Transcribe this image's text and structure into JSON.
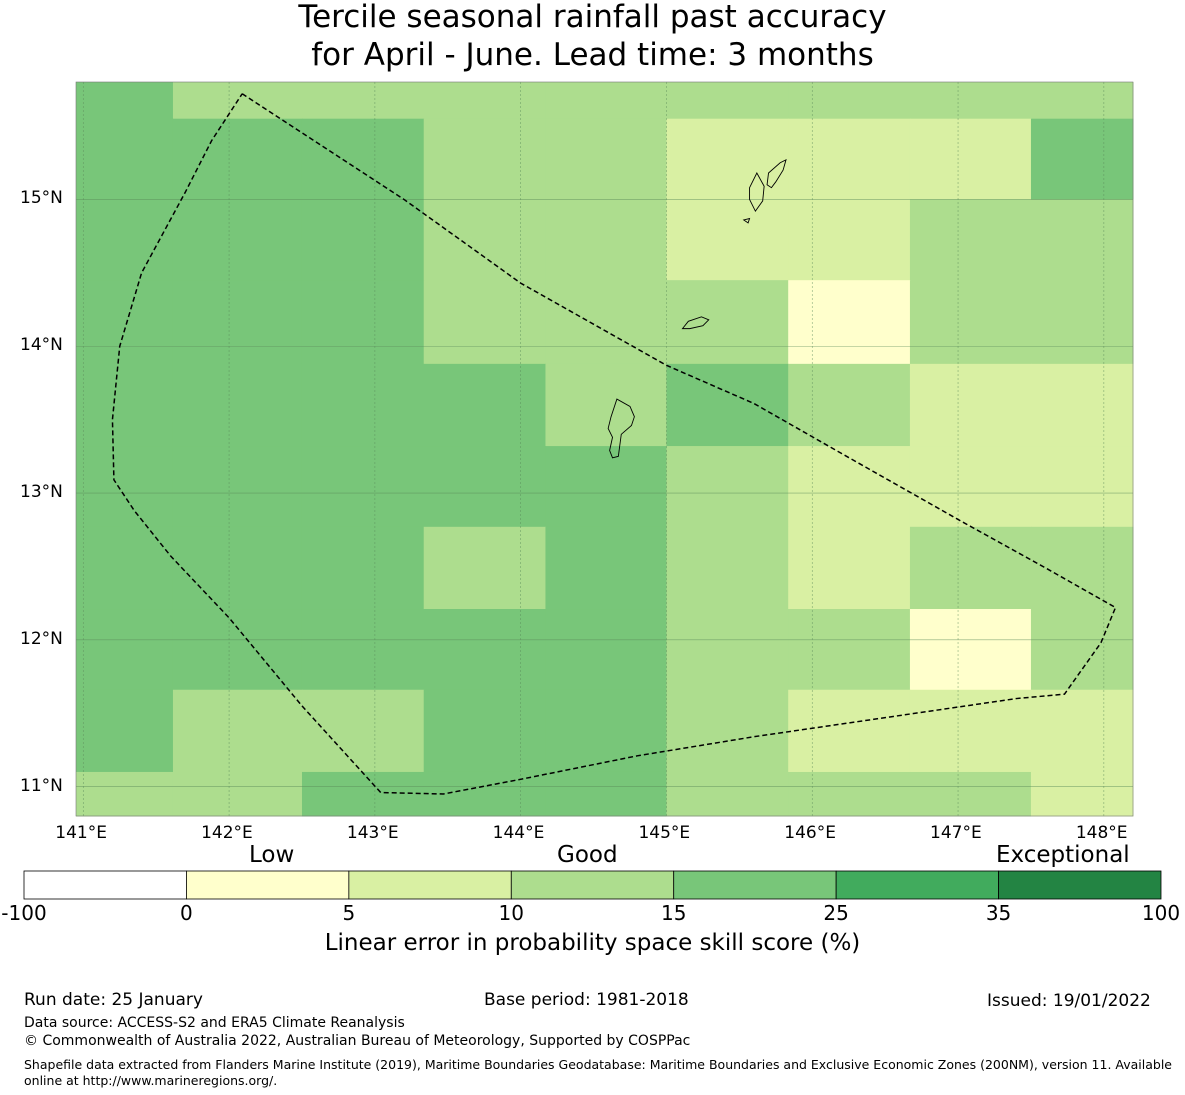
{
  "title": {
    "line1": "Tercile seasonal rainfall past accuracy",
    "line2": "for April - June. Lead time: 3 months"
  },
  "map": {
    "lon_range": [
      140.95,
      148.2
    ],
    "lat_range": [
      10.8,
      15.8
    ],
    "lon_ticks": [
      {
        "value": 141,
        "label": "141°E"
      },
      {
        "value": 142,
        "label": "142°E"
      },
      {
        "value": 143,
        "label": "143°E"
      },
      {
        "value": 144,
        "label": "144°E"
      },
      {
        "value": 145,
        "label": "145°E"
      },
      {
        "value": 146,
        "label": "146°E"
      },
      {
        "value": 147,
        "label": "147°E"
      },
      {
        "value": 148,
        "label": "148°E"
      }
    ],
    "lat_ticks": [
      {
        "value": 15,
        "label": "15°N"
      },
      {
        "value": 14,
        "label": "14°N"
      },
      {
        "value": 13,
        "label": "13°N"
      },
      {
        "value": 12,
        "label": "12°N"
      },
      {
        "value": 11,
        "label": "11°N"
      }
    ],
    "grid_lon_edges": [
      140.95,
      141.615,
      142.5,
      143.335,
      144.17,
      145.0,
      145.835,
      146.67,
      147.5,
      148.2
    ],
    "grid_lat_edges": [
      15.8,
      15.55,
      15.0,
      14.45,
      13.88,
      13.32,
      12.77,
      12.21,
      11.66,
      11.1,
      10.8
    ],
    "cell_classes": [
      [
        3,
        2,
        2,
        2,
        2,
        2,
        2,
        2,
        2
      ],
      [
        3,
        3,
        3,
        2,
        2,
        1,
        1,
        1,
        3
      ],
      [
        3,
        3,
        3,
        2,
        2,
        1,
        1,
        2,
        2
      ],
      [
        3,
        3,
        3,
        2,
        2,
        2,
        0,
        2,
        2
      ],
      [
        3,
        3,
        3,
        3,
        2,
        3,
        2,
        1,
        1
      ],
      [
        3,
        3,
        3,
        3,
        3,
        2,
        1,
        1,
        1
      ],
      [
        3,
        3,
        3,
        2,
        3,
        2,
        1,
        2,
        2
      ],
      [
        3,
        3,
        3,
        3,
        3,
        2,
        2,
        0,
        2
      ],
      [
        3,
        2,
        2,
        3,
        3,
        2,
        1,
        1,
        1
      ],
      [
        2,
        2,
        3,
        3,
        3,
        2,
        2,
        2,
        1
      ]
    ],
    "eez_boundary": [
      [
        142.09,
        15.72
      ],
      [
        143.2,
        15.0
      ],
      [
        144.0,
        14.43
      ],
      [
        145.0,
        13.87
      ],
      [
        145.6,
        13.61
      ],
      [
        146.2,
        13.27
      ],
      [
        147.0,
        12.82
      ],
      [
        147.6,
        12.49
      ],
      [
        148.08,
        12.22
      ],
      [
        147.98,
        11.98
      ],
      [
        147.73,
        11.63
      ],
      [
        147.4,
        11.6
      ],
      [
        146.5,
        11.47
      ],
      [
        145.6,
        11.34
      ],
      [
        144.8,
        11.21
      ],
      [
        144.0,
        11.05
      ],
      [
        143.47,
        10.95
      ],
      [
        143.04,
        10.96
      ],
      [
        142.5,
        11.55
      ],
      [
        142.0,
        12.15
      ],
      [
        141.6,
        12.57
      ],
      [
        141.35,
        12.88
      ],
      [
        141.21,
        13.09
      ],
      [
        141.2,
        13.5
      ],
      [
        141.25,
        14.0
      ],
      [
        141.4,
        14.5
      ],
      [
        141.7,
        15.05
      ],
      [
        141.88,
        15.4
      ],
      [
        142.09,
        15.72
      ]
    ],
    "islands": [
      [
        [
          144.62,
          13.52
        ],
        [
          144.66,
          13.64
        ],
        [
          144.75,
          13.59
        ],
        [
          144.78,
          13.52
        ],
        [
          144.76,
          13.46
        ],
        [
          144.69,
          13.4
        ],
        [
          144.67,
          13.25
        ],
        [
          144.63,
          13.24
        ],
        [
          144.61,
          13.29
        ],
        [
          144.63,
          13.38
        ],
        [
          144.6,
          13.44
        ],
        [
          144.62,
          13.52
        ]
      ],
      [
        [
          145.11,
          14.12
        ],
        [
          145.15,
          14.17
        ],
        [
          145.24,
          14.2
        ],
        [
          145.29,
          14.18
        ],
        [
          145.25,
          14.14
        ],
        [
          145.16,
          14.12
        ],
        [
          145.11,
          14.12
        ]
      ],
      [
        [
          145.57,
          15.08
        ],
        [
          145.62,
          15.18
        ],
        [
          145.67,
          15.09
        ],
        [
          145.66,
          14.99
        ],
        [
          145.61,
          14.92
        ],
        [
          145.57,
          15.0
        ],
        [
          145.57,
          15.08
        ]
      ],
      [
        [
          145.69,
          15.1
        ],
        [
          145.7,
          15.18
        ],
        [
          145.78,
          15.25
        ],
        [
          145.82,
          15.27
        ],
        [
          145.8,
          15.2
        ],
        [
          145.75,
          15.12
        ],
        [
          145.72,
          15.08
        ],
        [
          145.69,
          15.1
        ]
      ],
      [
        [
          145.53,
          14.86
        ],
        [
          145.57,
          14.87
        ],
        [
          145.56,
          14.84
        ],
        [
          145.53,
          14.86
        ]
      ]
    ]
  },
  "legend": {
    "low_label": "Low",
    "good_label": "Good",
    "exceptional_label": "Exceptional",
    "boundaries": [
      "-100",
      "0",
      "5",
      "10",
      "15",
      "25",
      "35",
      "100"
    ],
    "colors": [
      "#ffffff",
      "#ffffcc",
      "#d9f0a3",
      "#addd8e",
      "#78c679",
      "#41ab5d",
      "#238443"
    ],
    "title": "Linear error in probability space skill score (%)"
  },
  "footer": {
    "run_date": "Run date: 25 January",
    "base_period": "Base period: 1981-2018",
    "issued": "Issued: 19/01/2022",
    "data_source": "Data source: ACCESS-S2 and ERA5 Climate Reanalysis",
    "copyright": "© Commonwealth of Australia 2022, Australian Bureau of Meteorology, Supported by COSPPac",
    "shapefile_note": "Shapefile data extracted from Flanders Marine Institute (2019), Maritime Boundaries Geodatabase: Maritime Boundaries and Exclusive Economic Zones (200NM), version 11. Available online at http://www.marineregions.org/."
  }
}
